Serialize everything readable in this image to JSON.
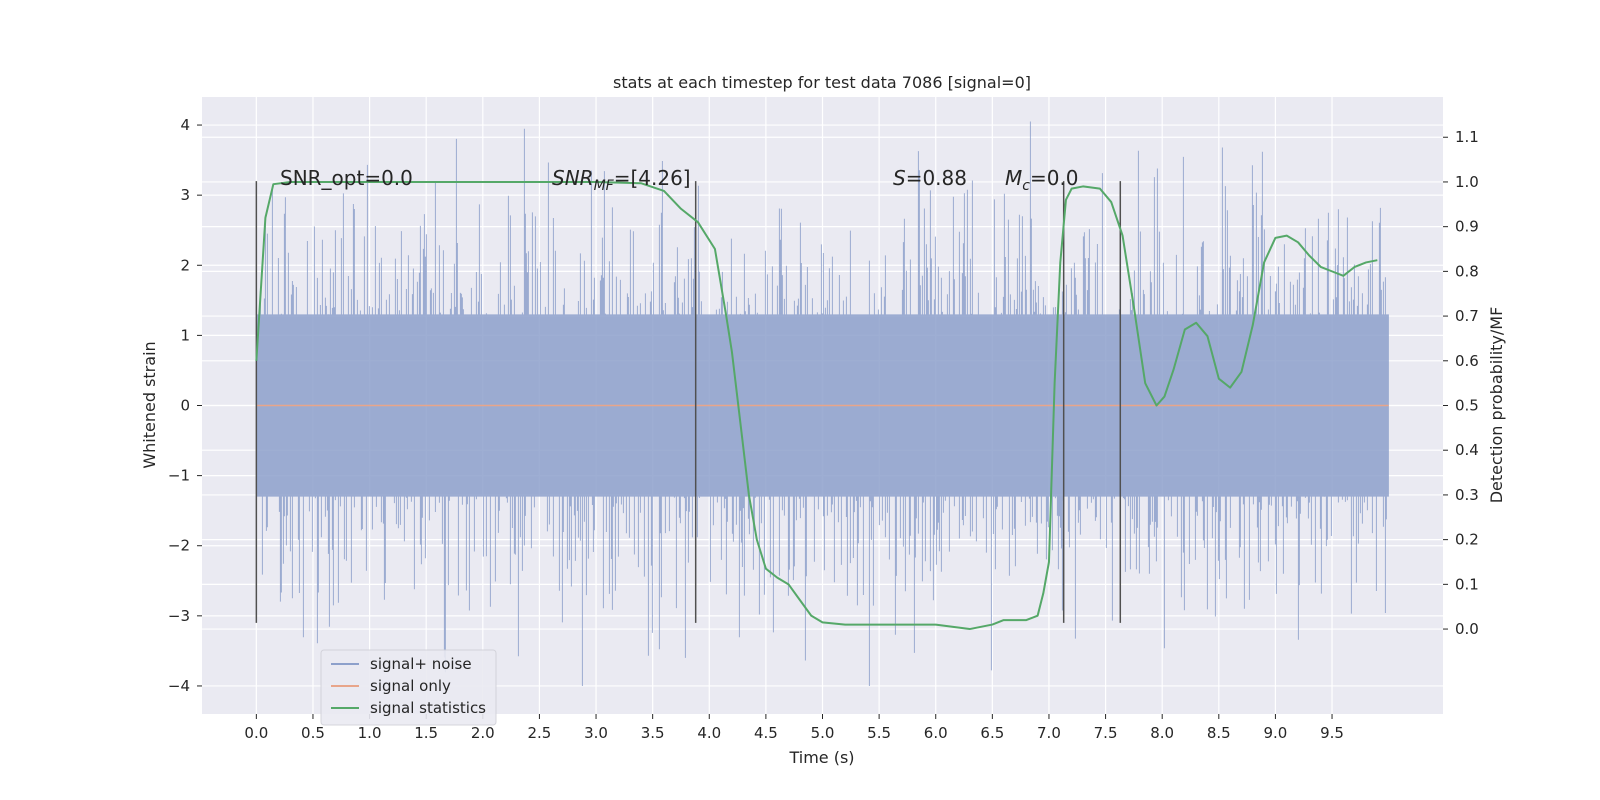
{
  "chart_data": {
    "type": "line",
    "title": "stats at each timestep for test data 7086 [signal=0]",
    "xlabel": "Time (s)",
    "ylabel": "Whitened strain",
    "y2label": "Detection probability/MF",
    "xlim": [
      -0.48,
      10.48
    ],
    "ylim": [
      -4.4,
      4.4
    ],
    "y2lim": [
      -0.19,
      1.19
    ],
    "x_ticks": [
      "0.0",
      "0.5",
      "1.0",
      "1.5",
      "2.0",
      "2.5",
      "3.0",
      "3.5",
      "4.0",
      "4.5",
      "5.0",
      "5.5",
      "6.0",
      "6.5",
      "7.0",
      "7.5",
      "8.0",
      "8.5",
      "9.0",
      "9.5"
    ],
    "y_ticks": [
      "4",
      "3",
      "2",
      "1",
      "0",
      "−1",
      "−2",
      "−3",
      "−4"
    ],
    "y2_ticks": [
      "1.1",
      "1.0",
      "0.9",
      "0.8",
      "0.7",
      "0.6",
      "0.5",
      "0.4",
      "0.3",
      "0.2",
      "0.1",
      "0.0"
    ],
    "grid": true,
    "legend": {
      "position": "lower-left",
      "entries": [
        {
          "name": "signal+ noise",
          "color": "#8da0cb"
        },
        {
          "name": "signal only",
          "color": "#e8a58a"
        },
        {
          "name": "signal statistics",
          "color": "#55a868"
        }
      ]
    },
    "annotations": {
      "snr_opt": "SNR_opt=0.0",
      "snr_mf_italic": "SNR",
      "snr_mf_sub": "MF",
      "snr_mf_rest": "=[4.26]",
      "s_italic": "S",
      "s_rest": "=0.88",
      "mc_italic": "M",
      "mc_sub": "c",
      "mc_rest": "=0.0"
    },
    "vlines_x": [
      0.0,
      3.88,
      7.13,
      7.63
    ],
    "vlines_yrange": [
      -3.1,
      3.2
    ],
    "series": [
      {
        "name": "signal+ noise",
        "color": "#8da0cb",
        "x_range": [
          0.0,
          10.0
        ],
        "typical_amplitude": 1.3,
        "max_value": 4.05,
        "min_value": -4.0
      },
      {
        "name": "signal only",
        "color": "#e8a58a",
        "x": [
          0.0,
          10.0
        ],
        "y": [
          0.0,
          0.0
        ]
      },
      {
        "name": "signal statistics",
        "color": "#55a868",
        "axis": "right",
        "x": [
          0.0,
          0.08,
          0.15,
          0.3,
          0.6,
          1.0,
          2.0,
          3.0,
          3.4,
          3.6,
          3.75,
          3.9,
          4.05,
          4.15,
          4.2,
          4.28,
          4.35,
          4.42,
          4.5,
          4.6,
          4.7,
          4.8,
          4.9,
          5.0,
          5.2,
          5.5,
          6.0,
          6.3,
          6.5,
          6.6,
          6.8,
          6.9,
          6.95,
          7.0,
          7.05,
          7.1,
          7.15,
          7.2,
          7.3,
          7.45,
          7.55,
          7.65,
          7.75,
          7.85,
          7.95,
          8.02,
          8.1,
          8.2,
          8.3,
          8.4,
          8.5,
          8.6,
          8.7,
          8.8,
          8.9,
          9.0,
          9.1,
          9.2,
          9.3,
          9.4,
          9.5,
          9.6,
          9.7,
          9.8,
          9.9
        ],
        "y": [
          0.6,
          0.92,
          0.995,
          1.0,
          1.0,
          1.0,
          1.0,
          1.0,
          0.997,
          0.98,
          0.94,
          0.91,
          0.85,
          0.7,
          0.62,
          0.45,
          0.3,
          0.2,
          0.135,
          0.115,
          0.1,
          0.065,
          0.03,
          0.015,
          0.01,
          0.01,
          0.01,
          0.0,
          0.01,
          0.02,
          0.02,
          0.03,
          0.08,
          0.15,
          0.55,
          0.82,
          0.96,
          0.985,
          0.99,
          0.985,
          0.955,
          0.88,
          0.72,
          0.55,
          0.5,
          0.52,
          0.58,
          0.67,
          0.685,
          0.655,
          0.56,
          0.54,
          0.575,
          0.68,
          0.82,
          0.875,
          0.88,
          0.865,
          0.835,
          0.81,
          0.8,
          0.79,
          0.81,
          0.82,
          0.825
        ]
      }
    ]
  }
}
